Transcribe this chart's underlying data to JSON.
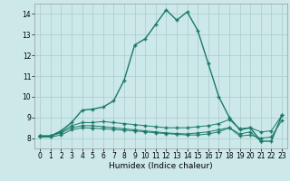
{
  "xlabel": "Humidex (Indice chaleur)",
  "xlim": [
    -0.5,
    23.5
  ],
  "ylim": [
    7.5,
    14.5
  ],
  "yticks": [
    8,
    9,
    10,
    11,
    12,
    13,
    14
  ],
  "xticks": [
    0,
    1,
    2,
    3,
    4,
    5,
    6,
    7,
    8,
    9,
    10,
    11,
    12,
    13,
    14,
    15,
    16,
    17,
    18,
    19,
    20,
    21,
    22,
    23
  ],
  "background_color": "#cce8e8",
  "grid_color": "#b0d0d0",
  "line_color": "#1a7a6a",
  "line1_x": [
    0,
    1,
    2,
    3,
    4,
    5,
    6,
    7,
    8,
    9,
    10,
    11,
    12,
    13,
    14,
    15,
    16,
    17,
    18,
    19,
    20,
    21,
    22,
    23
  ],
  "line1_y": [
    8.1,
    8.1,
    8.35,
    8.75,
    9.35,
    9.4,
    9.5,
    9.8,
    10.8,
    12.5,
    12.8,
    13.5,
    14.2,
    13.7,
    14.1,
    13.2,
    11.6,
    10.0,
    9.0,
    8.4,
    8.5,
    7.85,
    7.85,
    9.1
  ],
  "line2_x": [
    0,
    1,
    2,
    3,
    4,
    5,
    6,
    7,
    8,
    9,
    10,
    11,
    12,
    13,
    14,
    15,
    16,
    17,
    18,
    19,
    20,
    21,
    22,
    23
  ],
  "line2_y": [
    8.1,
    8.1,
    8.3,
    8.6,
    8.75,
    8.75,
    8.8,
    8.75,
    8.7,
    8.65,
    8.6,
    8.55,
    8.5,
    8.5,
    8.5,
    8.55,
    8.6,
    8.7,
    8.9,
    8.45,
    8.5,
    8.3,
    8.35,
    9.1
  ],
  "line3_x": [
    0,
    1,
    2,
    3,
    4,
    5,
    6,
    7,
    8,
    9,
    10,
    11,
    12,
    13,
    14,
    15,
    16,
    17,
    18,
    19,
    20,
    21
  ],
  "line3_y": [
    8.1,
    8.1,
    8.25,
    8.5,
    8.6,
    8.6,
    8.55,
    8.5,
    8.45,
    8.4,
    8.35,
    8.3,
    8.25,
    8.22,
    8.2,
    8.25,
    8.3,
    8.4,
    8.5,
    8.2,
    8.3,
    7.85
  ],
  "line4_x": [
    0,
    1,
    2,
    3,
    4,
    5,
    6,
    7,
    8,
    9,
    10,
    11,
    12,
    13,
    14,
    15,
    16,
    17,
    18,
    19,
    20,
    21,
    22,
    23
  ],
  "line4_y": [
    8.05,
    8.05,
    8.15,
    8.4,
    8.5,
    8.48,
    8.45,
    8.42,
    8.38,
    8.35,
    8.3,
    8.25,
    8.22,
    8.18,
    8.15,
    8.15,
    8.2,
    8.3,
    8.5,
    8.1,
    8.15,
    8.0,
    8.05,
    8.85
  ]
}
